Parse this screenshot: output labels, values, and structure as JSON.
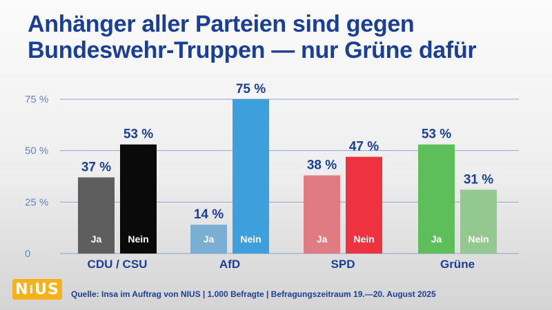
{
  "title": {
    "line1": "Anhänger aller Parteien sind gegen",
    "line2": "Bundeswehr-Truppen — nur Grüne dafür"
  },
  "logo": {
    "text": "NiUS"
  },
  "source": "Quelle: Insa im Auftrag von NIUS | 1.000 Befragte  | Befragungszeitraum 19.—20. August 2025",
  "chart_data": {
    "type": "bar",
    "categories": [
      "CDU / CSU",
      "AfD",
      "SPD",
      "Grüne"
    ],
    "series": [
      {
        "name": "Ja",
        "values": [
          37,
          14,
          38,
          53
        ]
      },
      {
        "name": "Nein",
        "values": [
          53,
          75,
          47,
          31
        ]
      }
    ],
    "value_labels": [
      [
        "37 %",
        "53 %"
      ],
      [
        "14 %",
        "75 %"
      ],
      [
        "38 %",
        "47 %"
      ],
      [
        "53 %",
        "31 %"
      ]
    ],
    "bar_colors": [
      [
        "#5e5e5e",
        "#0a0a0a"
      ],
      [
        "#7aaed3",
        "#3d9fdb"
      ],
      [
        "#e07b82",
        "#ee3240"
      ],
      [
        "#5cbf5a",
        "#93c98e"
      ]
    ],
    "yticks": [
      0,
      25,
      50,
      75
    ],
    "ytick_labels": [
      "0",
      "25 %",
      "50 %",
      "75 %"
    ],
    "ylim": [
      0,
      80
    ],
    "grid": true,
    "legend": "none (series names printed inside bars)",
    "colors": {
      "title": "#1a3f96",
      "value_labels": "#1a3f96",
      "category_labels": "#1a3f96",
      "ticks": "#5f86c8",
      "gridlines": "#8aa2d1",
      "logo": "#f6b21a"
    }
  }
}
